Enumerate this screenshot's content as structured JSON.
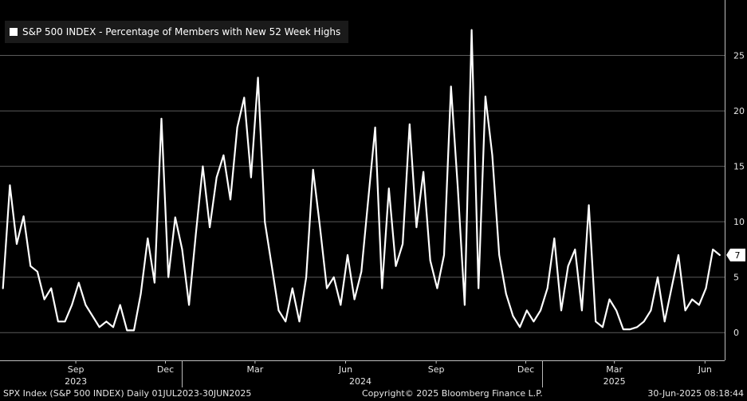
{
  "chart_data": {
    "type": "line",
    "legend": "S&P 500 INDEX - Percentage of Members with New 52 Week Highs",
    "series": [
      {
        "name": "S&P 500 INDEX - Percentage of Members with New 52 Week Highs",
        "x": [
          "2023-07-03",
          "2023-07-10",
          "2023-07-17",
          "2023-07-24",
          "2023-07-31",
          "2023-08-07",
          "2023-08-14",
          "2023-08-21",
          "2023-08-28",
          "2023-09-04",
          "2023-09-11",
          "2023-09-18",
          "2023-09-25",
          "2023-10-02",
          "2023-10-09",
          "2023-10-16",
          "2023-10-23",
          "2023-10-30",
          "2023-11-06",
          "2023-11-13",
          "2023-11-20",
          "2023-11-27",
          "2023-12-04",
          "2023-12-11",
          "2023-12-18",
          "2023-12-25",
          "2024-01-01",
          "2024-01-08",
          "2024-01-15",
          "2024-01-22",
          "2024-01-29",
          "2024-02-05",
          "2024-02-12",
          "2024-02-19",
          "2024-02-26",
          "2024-03-04",
          "2024-03-11",
          "2024-03-18",
          "2024-03-25",
          "2024-04-01",
          "2024-04-08",
          "2024-04-15",
          "2024-04-22",
          "2024-04-29",
          "2024-05-06",
          "2024-05-13",
          "2024-05-20",
          "2024-05-27",
          "2024-06-03",
          "2024-06-10",
          "2024-06-17",
          "2024-06-24",
          "2024-07-01",
          "2024-07-08",
          "2024-07-15",
          "2024-07-22",
          "2024-07-29",
          "2024-08-05",
          "2024-08-12",
          "2024-08-19",
          "2024-08-26",
          "2024-09-02",
          "2024-09-09",
          "2024-09-16",
          "2024-09-23",
          "2024-09-30",
          "2024-10-07",
          "2024-10-14",
          "2024-10-21",
          "2024-10-28",
          "2024-11-04",
          "2024-11-11",
          "2024-11-18",
          "2024-11-25",
          "2024-12-02",
          "2024-12-09",
          "2024-12-16",
          "2024-12-23",
          "2024-12-30",
          "2025-01-06",
          "2025-01-13",
          "2025-01-20",
          "2025-01-27",
          "2025-02-03",
          "2025-02-10",
          "2025-02-17",
          "2025-02-24",
          "2025-03-03",
          "2025-03-10",
          "2025-03-17",
          "2025-03-24",
          "2025-03-31",
          "2025-04-07",
          "2025-04-14",
          "2025-04-21",
          "2025-04-28",
          "2025-05-05",
          "2025-05-12",
          "2025-05-19",
          "2025-05-26",
          "2025-06-02",
          "2025-06-09",
          "2025-06-16",
          "2025-06-23",
          "2025-06-30"
        ],
        "values": [
          4,
          13.3,
          8,
          10.5,
          6,
          5.5,
          3,
          4,
          1,
          1,
          2.5,
          4.5,
          2.5,
          1.5,
          0.5,
          1,
          0.5,
          2.5,
          0.2,
          0.2,
          3.5,
          8.5,
          4.5,
          19.3,
          5,
          10.4,
          7.5,
          2.5,
          9,
          15,
          9.5,
          14,
          16,
          12,
          18.5,
          21.2,
          14,
          23,
          10,
          6,
          2,
          1,
          4,
          1,
          5,
          14.7,
          9.5,
          4,
          5,
          2.5,
          7,
          3,
          5.5,
          12,
          18.5,
          4,
          13,
          6,
          8,
          18.8,
          9.5,
          14.5,
          6.5,
          4,
          7,
          22.2,
          13,
          2.5,
          27.3,
          4,
          21.3,
          16,
          7,
          3.5,
          1.5,
          0.5,
          2,
          1,
          2,
          4,
          8.5,
          2,
          6,
          7.5,
          2,
          11.5,
          1,
          0.5,
          3,
          2,
          0.3,
          0.3,
          0.5,
          1,
          2,
          5,
          1,
          4,
          7,
          2,
          3,
          2.5,
          4,
          7.5,
          7
        ]
      }
    ],
    "ylim": [
      -2.5,
      30
    ],
    "y_ticks": [
      0,
      5,
      10,
      15,
      20,
      25
    ],
    "x_tick_labels": [
      {
        "date": "2023-09-15",
        "label": "Sep"
      },
      {
        "date": "2023-12-15",
        "label": "Dec"
      },
      {
        "date": "2024-03-15",
        "label": "Mar"
      },
      {
        "date": "2024-06-15",
        "label": "Jun"
      },
      {
        "date": "2024-09-15",
        "label": "Sep"
      },
      {
        "date": "2024-12-15",
        "label": "Dec"
      },
      {
        "date": "2025-03-15",
        "label": "Mar"
      },
      {
        "date": "2025-06-15",
        "label": "Jun"
      }
    ],
    "year_labels": [
      {
        "date": "2023-09-15",
        "label": "2023"
      },
      {
        "date": "2024-06-30",
        "label": "2024"
      },
      {
        "date": "2025-03-15",
        "label": "2025"
      }
    ],
    "year_boundaries": [
      "2024-01-01",
      "2025-01-01"
    ],
    "last_value_label": "7",
    "x_range": [
      "2023-06-30",
      "2025-07-05"
    ],
    "grid": true,
    "colors": {
      "line": "#ffffff",
      "grid": "#5a5a5a",
      "background": "#000000",
      "legend_bg": "#1a1a1a"
    }
  },
  "footer": {
    "left": "SPX Index (S&P 500 INDEX)  Daily 01JUL2023-30JUN2025",
    "center": "Copyright© 2025 Bloomberg Finance L.P.",
    "right": "30-Jun-2025 08:18:44"
  }
}
